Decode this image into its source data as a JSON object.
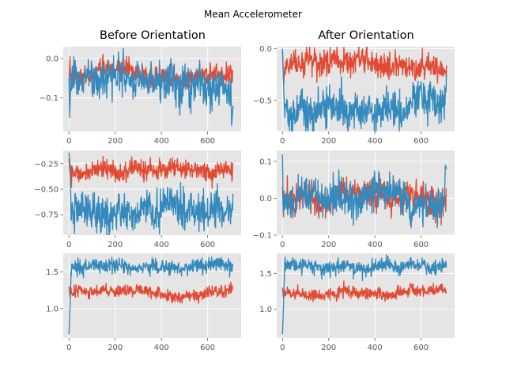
{
  "figure_title": "Mean Accelerometer",
  "column_titles": [
    "Before Orientation",
    "After Orientation"
  ],
  "colors": {
    "background": "#E5E5E5",
    "grid": "#FFFFFF",
    "red": "#E24A33",
    "blue": "#348ABD",
    "tick_text": "#555555"
  },
  "chart_data": [
    {
      "type": "line",
      "row": 1,
      "column": "Before Orientation",
      "title": "Before Orientation",
      "xlim": [
        -25,
        745
      ],
      "ylim": [
        -0.185,
        0.03
      ],
      "grid": true,
      "xticks": [
        0,
        200,
        400,
        600
      ],
      "xtick_labels": [
        "0",
        "200",
        "400",
        "600"
      ],
      "yticks": [
        0.0,
        -0.1
      ],
      "ytick_labels": [
        "0.0",
        "−0.1"
      ],
      "series": [
        {
          "color": "#E24A33",
          "x_range": [
            0,
            710
          ],
          "mean": -0.045,
          "noise": 0.012,
          "start": [
            [
              0,
              -0.06
            ],
            [
              4,
              0.005
            ],
            [
              8,
              -0.08
            ]
          ]
        },
        {
          "color": "#348ABD",
          "x_range": [
            0,
            710
          ],
          "mean": -0.055,
          "noise": 0.025,
          "start": [
            [
              0,
              -0.05
            ],
            [
              3,
              -0.15
            ],
            [
              6,
              -0.08
            ]
          ],
          "end": [
            [
              700,
              -0.05
            ],
            [
              704,
              -0.17
            ],
            [
              710,
              -0.12
            ]
          ]
        }
      ]
    },
    {
      "type": "line",
      "row": 1,
      "column": "After Orientation",
      "title": "After Orientation",
      "xlim": [
        -25,
        745
      ],
      "ylim": [
        -0.8,
        0.02
      ],
      "grid": true,
      "xticks": [
        0,
        200,
        400,
        600
      ],
      "xtick_labels": [
        "0",
        "200",
        "400",
        "600"
      ],
      "yticks": [
        0.0,
        -0.5
      ],
      "ytick_labels": [
        "0.0",
        "−0.5"
      ],
      "series": [
        {
          "color": "#E24A33",
          "x_range": [
            0,
            710
          ],
          "mean": -0.19,
          "noise": 0.06,
          "start": [
            [
              0,
              -0.02
            ],
            [
              5,
              -0.35
            ],
            [
              10,
              -0.18
            ]
          ]
        },
        {
          "color": "#348ABD",
          "x_range": [
            0,
            710
          ],
          "mean": -0.6,
          "noise": 0.09,
          "start": [
            [
              0,
              0.0
            ],
            [
              4,
              -0.3
            ],
            [
              8,
              -0.55
            ]
          ]
        }
      ]
    },
    {
      "type": "line",
      "row": 2,
      "column": "Before Orientation",
      "xlim": [
        -25,
        745
      ],
      "ylim": [
        -0.95,
        -0.12
      ],
      "grid": true,
      "xticks": [
        0,
        200,
        400,
        600
      ],
      "xtick_labels": [
        "0",
        "200",
        "400",
        "600"
      ],
      "yticks": [
        -0.25,
        -0.5,
        -0.75
      ],
      "ytick_labels": [
        "−0.25",
        "−0.50",
        "−0.75"
      ],
      "series": [
        {
          "color": "#E24A33",
          "x_range": [
            0,
            710
          ],
          "mean": -0.31,
          "noise": 0.045,
          "start": [
            [
              0,
              -0.2
            ],
            [
              4,
              -0.35
            ],
            [
              8,
              -0.3
            ]
          ]
        },
        {
          "color": "#348ABD",
          "x_range": [
            0,
            710
          ],
          "mean": -0.72,
          "noise": 0.09,
          "start": [
            [
              0,
              -0.14
            ],
            [
              4,
              -0.25
            ],
            [
              8,
              -0.6
            ]
          ]
        }
      ]
    },
    {
      "type": "line",
      "row": 2,
      "column": "After Orientation",
      "xlim": [
        -25,
        745
      ],
      "ylim": [
        -0.1,
        0.13
      ],
      "grid": true,
      "xticks": [
        0,
        200,
        400,
        600
      ],
      "xtick_labels": [
        "0",
        "200",
        "400",
        "600"
      ],
      "yticks": [
        0.1,
        0.0,
        -0.1
      ],
      "ytick_labels": [
        "0.1",
        "0.0",
        "−0.1"
      ],
      "series": [
        {
          "color": "#E24A33",
          "x_range": [
            0,
            710
          ],
          "mean": 0.0,
          "noise": 0.02,
          "start": [
            [
              0,
              0.03
            ],
            [
              4,
              -0.05
            ],
            [
              8,
              0.0
            ]
          ]
        },
        {
          "color": "#348ABD",
          "x_range": [
            0,
            710
          ],
          "mean": -0.015,
          "noise": 0.025,
          "start": [
            [
              0,
              0.12
            ],
            [
              3,
              -0.04
            ],
            [
              7,
              0.02
            ]
          ],
          "end": [
            [
              700,
              -0.02
            ],
            [
              705,
              0.09
            ],
            [
              710,
              0.08
            ]
          ]
        }
      ]
    },
    {
      "type": "line",
      "row": 3,
      "column": "Before Orientation",
      "xlim": [
        -25,
        745
      ],
      "ylim": [
        0.6,
        1.75
      ],
      "grid": true,
      "xticks": [
        0,
        200,
        400,
        600
      ],
      "xtick_labels": [
        "0",
        "200",
        "400",
        "600"
      ],
      "yticks": [
        1.5,
        1.0
      ],
      "ytick_labels": [
        "1.5",
        "1.0"
      ],
      "series": [
        {
          "color": "#E24A33",
          "x_range": [
            0,
            710
          ],
          "mean": 1.21,
          "noise": 0.04,
          "start": [
            [
              0,
              1.3
            ],
            [
              4,
              1.15
            ],
            [
              8,
              1.22
            ]
          ]
        },
        {
          "color": "#348ABD",
          "x_range": [
            0,
            710
          ],
          "mean": 1.56,
          "noise": 0.05,
          "start": [
            [
              0,
              0.65
            ],
            [
              5,
              1.1
            ],
            [
              9,
              1.5
            ]
          ]
        }
      ]
    },
    {
      "type": "line",
      "row": 3,
      "column": "After Orientation",
      "xlim": [
        -25,
        745
      ],
      "ylim": [
        0.6,
        1.78
      ],
      "grid": true,
      "xticks": [
        0,
        200,
        400,
        600
      ],
      "xtick_labels": [
        "0",
        "200",
        "400",
        "600"
      ],
      "yticks": [
        1.5,
        1.0
      ],
      "ytick_labels": [
        "1.5",
        "1.0"
      ],
      "series": [
        {
          "color": "#E24A33",
          "x_range": [
            0,
            710
          ],
          "mean": 1.22,
          "noise": 0.04,
          "start": [
            [
              0,
              1.3
            ],
            [
              4,
              1.15
            ],
            [
              8,
              1.22
            ]
          ]
        },
        {
          "color": "#348ABD",
          "x_range": [
            0,
            710
          ],
          "mean": 1.6,
          "noise": 0.05,
          "start": [
            [
              0,
              0.65
            ],
            [
              5,
              1.15
            ],
            [
              9,
              1.55
            ]
          ]
        }
      ]
    }
  ]
}
